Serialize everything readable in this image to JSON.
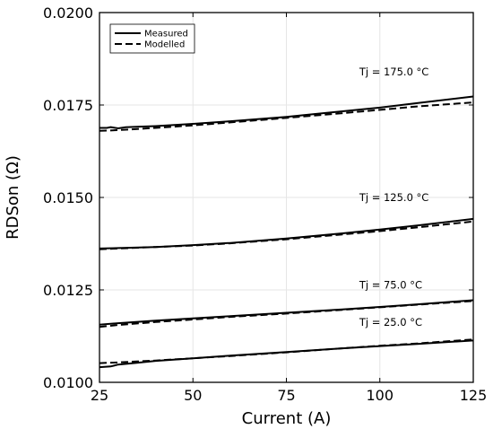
{
  "chart_data": {
    "type": "line",
    "title": "",
    "xlabel": "Current (A)",
    "ylabel": "RDSon (Ω)",
    "xlim": [
      25,
      125
    ],
    "ylim": [
      0.01,
      0.02
    ],
    "xticks": [
      25,
      50,
      75,
      100,
      125
    ],
    "xtick_labels": [
      "25",
      "50",
      "75",
      "100",
      "125"
    ],
    "yticks": [
      0.01,
      0.0125,
      0.015,
      0.0175,
      0.02
    ],
    "ytick_labels": [
      "0.0100",
      "0.0125",
      "0.0150",
      "0.0175",
      "0.0200"
    ],
    "grid": true,
    "legend": {
      "position": "top-left",
      "entries": [
        {
          "label": "Measured",
          "style": "solid"
        },
        {
          "label": "Modelled",
          "style": "dashed"
        }
      ]
    },
    "series": [
      {
        "group": "Tj = 25.0 °C",
        "style": "solid",
        "x": [
          25,
          28,
          30,
          35,
          40,
          50,
          60,
          75,
          90,
          100,
          110,
          125
        ],
        "y": [
          0.01041,
          0.01043,
          0.01048,
          0.01053,
          0.01058,
          0.01065,
          0.01072,
          0.01082,
          0.01092,
          0.01098,
          0.01104,
          0.01113
        ]
      },
      {
        "group": "Tj = 25.0 °C",
        "style": "dashed",
        "x": [
          25,
          30,
          40,
          50,
          60,
          75,
          90,
          100,
          110,
          125
        ],
        "y": [
          0.01052,
          0.01054,
          0.01059,
          0.01065,
          0.01071,
          0.01081,
          0.01092,
          0.01099,
          0.01105,
          0.01116
        ]
      },
      {
        "group": "Tj = 75.0 °C",
        "style": "solid",
        "x": [
          25,
          30,
          40,
          50,
          60,
          75,
          90,
          100,
          110,
          125
        ],
        "y": [
          0.01156,
          0.0116,
          0.01167,
          0.01173,
          0.01179,
          0.01188,
          0.01197,
          0.01204,
          0.01211,
          0.01222
        ]
      },
      {
        "group": "Tj = 75.0 °C",
        "style": "dashed",
        "x": [
          25,
          30,
          40,
          50,
          60,
          75,
          90,
          100,
          110,
          125
        ],
        "y": [
          0.0115,
          0.01155,
          0.01163,
          0.0117,
          0.01177,
          0.01186,
          0.01196,
          0.01203,
          0.0121,
          0.0122
        ]
      },
      {
        "group": "Tj = 125.0 °C",
        "style": "solid",
        "x": [
          25,
          30,
          40,
          50,
          60,
          75,
          90,
          100,
          110,
          125
        ],
        "y": [
          0.01362,
          0.01363,
          0.01366,
          0.01371,
          0.01377,
          0.01389,
          0.01403,
          0.01413,
          0.01424,
          0.01442
        ]
      },
      {
        "group": "Tj = 125.0 °C",
        "style": "dashed",
        "x": [
          25,
          30,
          40,
          50,
          60,
          75,
          90,
          100,
          110,
          125
        ],
        "y": [
          0.0136,
          0.01362,
          0.01366,
          0.0137,
          0.01376,
          0.01387,
          0.014,
          0.01409,
          0.01419,
          0.01435
        ]
      },
      {
        "group": "Tj = 175.0 °C",
        "style": "solid",
        "x": [
          25,
          27,
          28,
          30,
          32,
          35,
          40,
          50,
          60,
          75,
          90,
          100,
          110,
          125
        ],
        "y": [
          0.01688,
          0.01688,
          0.0169,
          0.01687,
          0.0169,
          0.01691,
          0.01693,
          0.01699,
          0.01706,
          0.01718,
          0.01733,
          0.01743,
          0.01755,
          0.01773
        ]
      },
      {
        "group": "Tj = 175.0 °C",
        "style": "dashed",
        "x": [
          25,
          30,
          40,
          50,
          60,
          75,
          90,
          100,
          110,
          125
        ],
        "y": [
          0.0168,
          0.01682,
          0.01688,
          0.01695,
          0.01703,
          0.01715,
          0.01728,
          0.01737,
          0.01746,
          0.01757
        ]
      }
    ],
    "annotations": [
      {
        "text": "Tj = 175.0 °C",
        "x": 94.5,
        "y": 0.0183
      },
      {
        "text": "Tj = 125.0 °C",
        "x": 94.5,
        "y": 0.0149
      },
      {
        "text": "Tj = 75.0 °C",
        "x": 94.5,
        "y": 0.01254
      },
      {
        "text": "Tj = 25.0 °C",
        "x": 94.5,
        "y": 0.01153
      }
    ]
  }
}
